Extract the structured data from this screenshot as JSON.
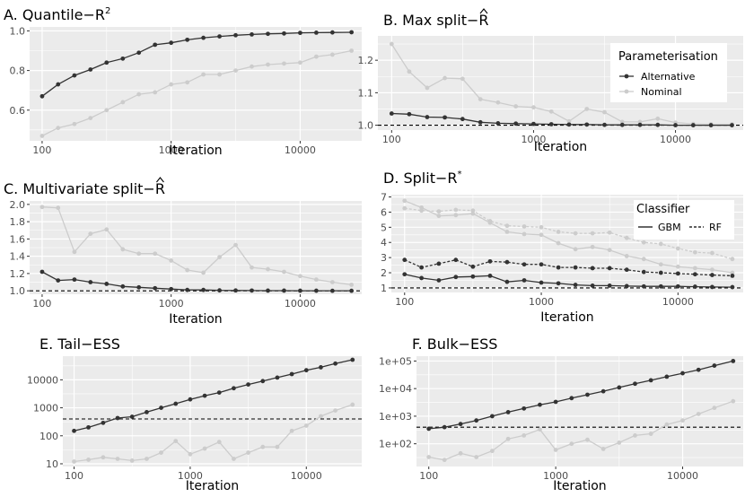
{
  "figure": {
    "legend_param_title": "Parameterisation",
    "legend_param_items": [
      "Alternative",
      "Nominal"
    ],
    "legend_classifier_title": "Classifier",
    "legend_classifier_items": [
      "GBM",
      "RF"
    ]
  },
  "colors": {
    "alternative": "#333333",
    "nominal": "#cccccc",
    "panel_bg": "#ebebeb",
    "grid": "#ffffff",
    "ref_line": "#000000"
  },
  "chart_data": [
    {
      "id": "A",
      "type": "line",
      "title": "A. Quantile−R",
      "title_sup": "2",
      "xlabel": "Iteration",
      "xscale": "log",
      "xlim": [
        80,
        30000
      ],
      "xticks": [
        "100",
        "1000",
        "10000"
      ],
      "yscale": "linear",
      "ylim": [
        0.445,
        1.02
      ],
      "yticks": [
        "0.6",
        "0.8",
        "1.0"
      ],
      "yticks_values": [
        0.6,
        0.8,
        1.0
      ],
      "x": [
        100,
        133,
        178,
        237,
        316,
        422,
        562,
        750,
        1000,
        1334,
        1778,
        2371,
        3162,
        4217,
        5623,
        7499,
        10000,
        13335,
        17783,
        25000
      ],
      "series": [
        {
          "name": "Alternative",
          "values": [
            0.67,
            0.73,
            0.775,
            0.805,
            0.84,
            0.86,
            0.89,
            0.93,
            0.94,
            0.955,
            0.965,
            0.972,
            0.978,
            0.982,
            0.985,
            0.987,
            0.99,
            0.991,
            0.992,
            0.993
          ]
        },
        {
          "name": "Nominal",
          "values": [
            0.47,
            0.51,
            0.53,
            0.56,
            0.6,
            0.64,
            0.68,
            0.69,
            0.73,
            0.74,
            0.78,
            0.78,
            0.8,
            0.82,
            0.83,
            0.835,
            0.84,
            0.87,
            0.88,
            0.9
          ]
        }
      ]
    },
    {
      "id": "B",
      "type": "line",
      "title": "B. Max split−R",
      "xlabel": "Iteration",
      "xscale": "log",
      "xlim": [
        80,
        30000
      ],
      "xticks": [
        "100",
        "1000",
        "10000"
      ],
      "yscale": "linear",
      "ylim": [
        0.985,
        1.275
      ],
      "yticks": [
        "1.0",
        "1.1",
        "1.2"
      ],
      "yticks_values": [
        1.0,
        1.1,
        1.2
      ],
      "refline": 1.0,
      "x": [
        100,
        133,
        178,
        237,
        316,
        422,
        562,
        750,
        1000,
        1334,
        1778,
        2371,
        3162,
        4217,
        5623,
        7499,
        10000,
        13335,
        17783,
        25000
      ],
      "series": [
        {
          "name": "Alternative",
          "values": [
            1.036,
            1.034,
            1.025,
            1.024,
            1.019,
            1.009,
            1.006,
            1.005,
            1.004,
            1.003,
            1.002,
            1.002,
            1.001,
            1.001,
            1.001,
            1.001,
            1.0,
            1.0,
            1.0,
            1.0
          ]
        },
        {
          "name": "Nominal",
          "values": [
            1.25,
            1.165,
            1.115,
            1.145,
            1.143,
            1.08,
            1.07,
            1.058,
            1.055,
            1.042,
            1.012,
            1.05,
            1.04,
            1.01,
            1.01,
            1.02,
            1.008,
            1.004,
            1.003,
            1.003
          ]
        }
      ]
    },
    {
      "id": "C",
      "type": "line",
      "title": "C. Multivariate split−R",
      "xlabel": "Iteration",
      "xscale": "log",
      "xlim": [
        80,
        30000
      ],
      "xticks": [
        "100",
        "1000",
        "10000"
      ],
      "yscale": "linear",
      "ylim": [
        0.96,
        2.04
      ],
      "yticks": [
        "1.0",
        "1.2",
        "1.4",
        "1.6",
        "1.8",
        "2.0"
      ],
      "yticks_values": [
        1.0,
        1.2,
        1.4,
        1.6,
        1.8,
        2.0
      ],
      "refline": 1.0,
      "x": [
        100,
        133,
        178,
        237,
        316,
        422,
        562,
        750,
        1000,
        1334,
        1778,
        2371,
        3162,
        4217,
        5623,
        7499,
        10000,
        13335,
        17783,
        25000
      ],
      "series": [
        {
          "name": "Alternative",
          "values": [
            1.22,
            1.12,
            1.13,
            1.1,
            1.08,
            1.05,
            1.04,
            1.03,
            1.02,
            1.01,
            1.01,
            1.005,
            1.004,
            1.003,
            1.002,
            1.002,
            1.001,
            1.001,
            1.0,
            1.0
          ]
        },
        {
          "name": "Nominal",
          "values": [
            1.97,
            1.96,
            1.45,
            1.66,
            1.71,
            1.48,
            1.43,
            1.43,
            1.35,
            1.24,
            1.21,
            1.39,
            1.53,
            1.27,
            1.25,
            1.22,
            1.17,
            1.13,
            1.1,
            1.07
          ]
        }
      ]
    },
    {
      "id": "D",
      "type": "line",
      "title": "D. Split−R",
      "title_sup": "*",
      "xlabel": "Iteration",
      "xscale": "log",
      "xlim": [
        80,
        30000
      ],
      "xticks": [
        "100",
        "1000",
        "10000"
      ],
      "yscale": "linear",
      "ylim": [
        0.7,
        7.15
      ],
      "yticks": [
        "1",
        "2",
        "3",
        "4",
        "5",
        "6",
        "7"
      ],
      "yticks_values": [
        1,
        2,
        3,
        4,
        5,
        6,
        7
      ],
      "refline": 1.0,
      "x": [
        100,
        133,
        178,
        237,
        316,
        422,
        562,
        750,
        1000,
        1334,
        1778,
        2371,
        3162,
        4217,
        5623,
        7499,
        10000,
        13335,
        17783,
        25000
      ],
      "series": [
        {
          "name": "Alternative GBM",
          "values": [
            1.9,
            1.65,
            1.5,
            1.72,
            1.75,
            1.8,
            1.4,
            1.5,
            1.35,
            1.3,
            1.2,
            1.15,
            1.15,
            1.12,
            1.1,
            1.1,
            1.1,
            1.08,
            1.06,
            1.05
          ]
        },
        {
          "name": "Alternative RF",
          "values": [
            2.85,
            2.35,
            2.6,
            2.85,
            2.4,
            2.75,
            2.7,
            2.55,
            2.55,
            2.35,
            2.35,
            2.3,
            2.3,
            2.2,
            2.05,
            2.0,
            1.95,
            1.9,
            1.85,
            1.8
          ]
        },
        {
          "name": "Nominal GBM",
          "values": [
            6.75,
            6.3,
            5.75,
            5.8,
            5.9,
            5.3,
            4.7,
            4.55,
            4.5,
            3.95,
            3.55,
            3.7,
            3.5,
            3.1,
            2.9,
            2.55,
            2.4,
            2.3,
            2.2,
            2.0
          ]
        },
        {
          "name": "Nominal RF",
          "values": [
            6.25,
            6.1,
            6.05,
            6.15,
            6.1,
            5.4,
            5.1,
            5.05,
            5.0,
            4.7,
            4.6,
            4.6,
            4.65,
            4.3,
            4.0,
            3.9,
            3.6,
            3.35,
            3.3,
            2.9
          ]
        }
      ]
    },
    {
      "id": "E",
      "type": "line",
      "title": "E. Tail−ESS",
      "xlabel": "Iteration",
      "xscale": "log",
      "xlim": [
        80,
        30000
      ],
      "xticks": [
        "100",
        "1000",
        "10000"
      ],
      "yscale": "log",
      "ylim": [
        8,
        70000
      ],
      "yticks": [
        "10",
        "100",
        "1000",
        "10000"
      ],
      "yticks_values": [
        10,
        100,
        1000,
        10000
      ],
      "refline": 400,
      "x": [
        100,
        133,
        178,
        237,
        316,
        422,
        562,
        750,
        1000,
        1334,
        1778,
        2371,
        3162,
        4217,
        5623,
        7499,
        10000,
        13335,
        17783,
        25000
      ],
      "series": [
        {
          "name": "Alternative",
          "values": [
            150,
            200,
            290,
            430,
            480,
            700,
            1000,
            1400,
            2000,
            2700,
            3500,
            5000,
            6800,
            9000,
            12000,
            16000,
            22000,
            28000,
            38000,
            52000
          ]
        },
        {
          "name": "Nominal",
          "values": [
            12,
            14,
            17,
            15,
            13,
            15,
            25,
            65,
            22,
            35,
            60,
            15,
            25,
            40,
            40,
            150,
            230,
            500,
            800,
            1300
          ]
        }
      ]
    },
    {
      "id": "F",
      "type": "line",
      "title": "F. Bulk−ESS",
      "xlabel": "Iteration",
      "xscale": "log",
      "xlim": [
        80,
        30000
      ],
      "xticks": [
        "100",
        "1000",
        "10000"
      ],
      "yscale": "log",
      "ylim": [
        15,
        150000
      ],
      "yticks": [
        "1e+02",
        "1e+03",
        "1e+04",
        "1e+05"
      ],
      "yticks_values": [
        100,
        1000,
        10000,
        100000
      ],
      "refline": 400,
      "x": [
        100,
        133,
        178,
        237,
        316,
        422,
        562,
        750,
        1000,
        1334,
        1778,
        2371,
        3162,
        4217,
        5623,
        7499,
        10000,
        13335,
        17783,
        25000
      ],
      "series": [
        {
          "name": "Alternative",
          "values": [
            350,
            400,
            520,
            700,
            1000,
            1400,
            1900,
            2600,
            3300,
            4500,
            6000,
            8000,
            11000,
            15000,
            20000,
            27000,
            36000,
            48000,
            68000,
            100000
          ]
        },
        {
          "name": "Nominal",
          "values": [
            33,
            26,
            45,
            33,
            55,
            150,
            200,
            330,
            60,
            100,
            140,
            65,
            110,
            200,
            230,
            500,
            700,
            1200,
            2000,
            3500
          ]
        }
      ]
    }
  ]
}
